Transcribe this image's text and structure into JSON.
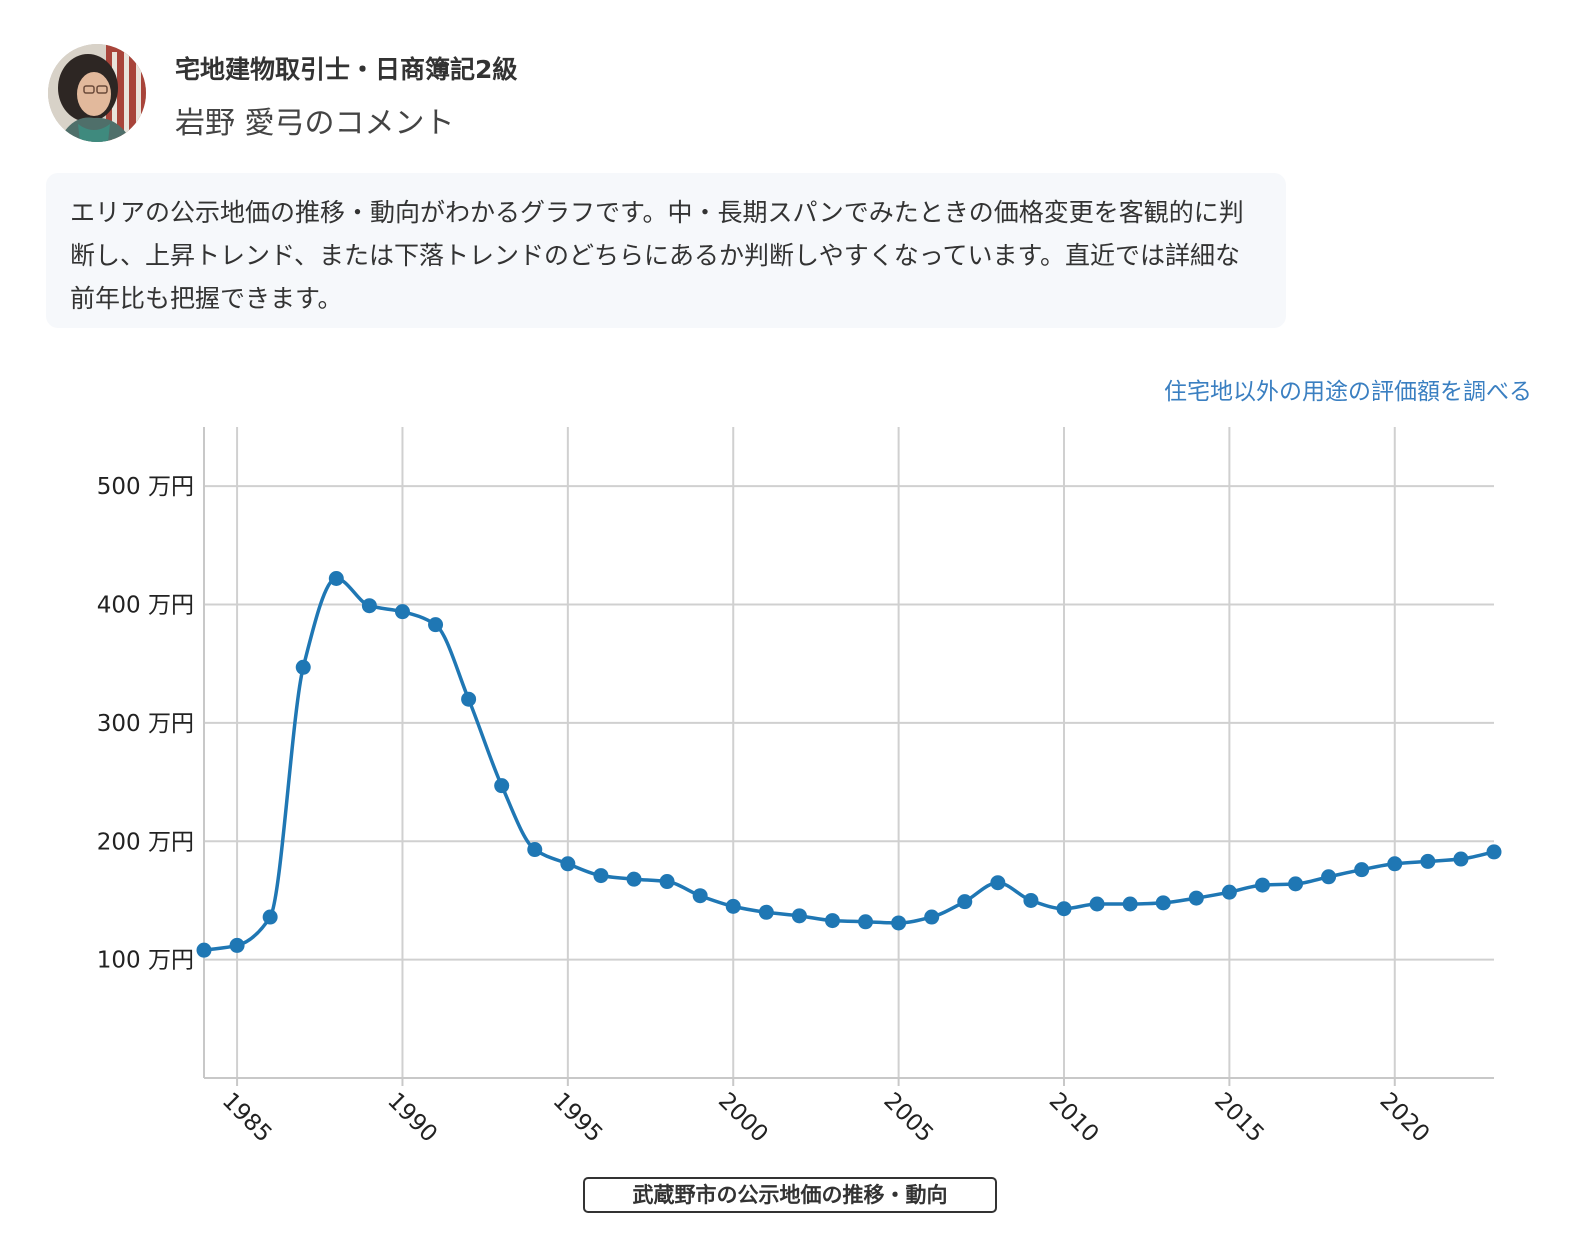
{
  "profile": {
    "qualification": "宅地建物取引士・日商簿記2級",
    "name": "岩野 愛弓のコメント"
  },
  "comment": {
    "text": "エリアの公示地価の推移・動向がわかるグラフです。中・長期スパンでみたときの価格変更を客観的に判断し、上昇トレンド、または下落トレンドのどちらにあるか判断しやすくなっています。直近では詳細な前年比も把握できます。"
  },
  "links": {
    "other_usage": "住宅地以外の用途の評価額を調べる"
  },
  "chart_data": {
    "type": "line",
    "title": "武蔵野市の公示地価の推移・動向",
    "xlabel": "",
    "ylabel": "",
    "y_unit": "万円",
    "xlim": [
      1984,
      2023
    ],
    "ylim": [
      0,
      550
    ],
    "x_ticks": [
      "1985",
      "1990",
      "1995",
      "2000",
      "2005",
      "2010",
      "2015",
      "2020"
    ],
    "y_ticks": [
      "100 万円",
      "200 万円",
      "300 万円",
      "400 万円",
      "500 万円"
    ],
    "grid": true,
    "series_color": "#1f77b4",
    "x": [
      1984,
      1985,
      1986,
      1987,
      1988,
      1989,
      1990,
      1991,
      1992,
      1993,
      1994,
      1995,
      1996,
      1997,
      1998,
      1999,
      2000,
      2001,
      2002,
      2003,
      2004,
      2005,
      2006,
      2007,
      2008,
      2009,
      2010,
      2011,
      2012,
      2013,
      2014,
      2015,
      2016,
      2017,
      2018,
      2019,
      2020,
      2021,
      2022,
      2023
    ],
    "series": [
      {
        "values": [
          108,
          112,
          136,
          347,
          422,
          399,
          394,
          383,
          320,
          247,
          193,
          181,
          171,
          168,
          166,
          154,
          145,
          140,
          137,
          133,
          132,
          131,
          136,
          149,
          165,
          150,
          143,
          147,
          147,
          148,
          152,
          157,
          163,
          164,
          170,
          176,
          181,
          183,
          185,
          191
        ]
      }
    ]
  }
}
